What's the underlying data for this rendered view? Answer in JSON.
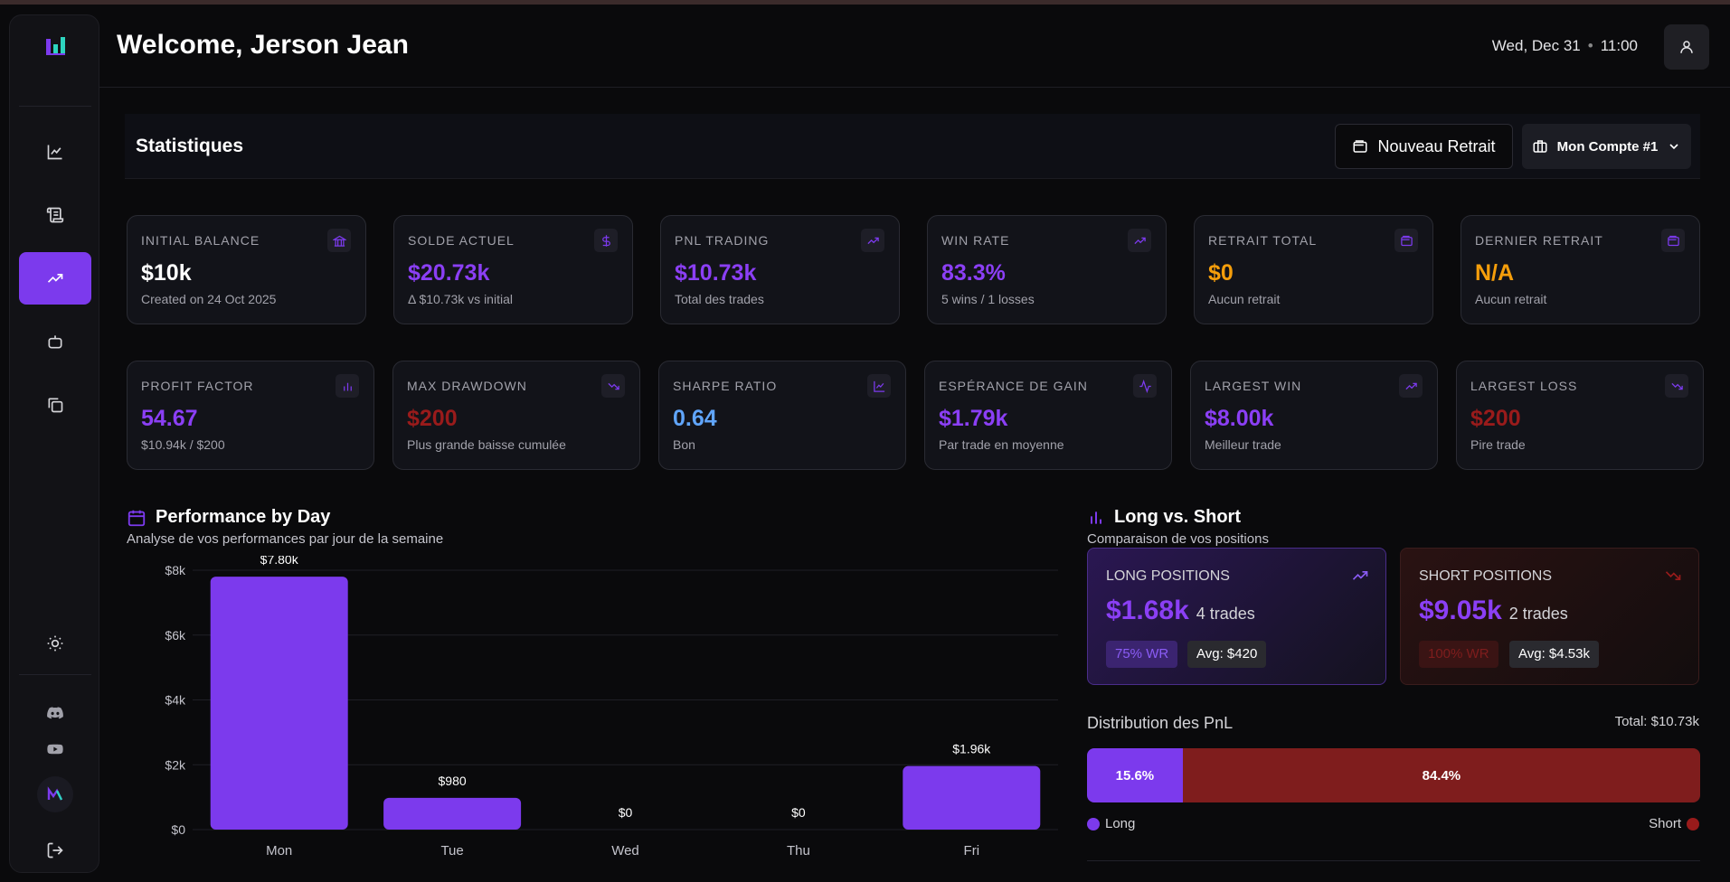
{
  "header": {
    "welcome": "Welcome, Jerson Jean",
    "date": "Wed, Dec 31",
    "time": "11:00"
  },
  "sidebar": {
    "items": [
      {
        "icon": "chart-line-icon"
      },
      {
        "icon": "scroll-icon"
      },
      {
        "icon": "trending-up-icon",
        "active": true
      },
      {
        "icon": "bot-icon"
      },
      {
        "icon": "copy-icon"
      }
    ],
    "bottom": [
      "sun-icon",
      "discord-icon",
      "youtube-icon",
      "logout-icon"
    ]
  },
  "stats": {
    "title": "Statistiques",
    "new_withdrawal": "Nouveau Retrait",
    "account": "Mon Compte #1"
  },
  "cards_row1": [
    {
      "label": "INITIAL BALANCE",
      "value": "$10k",
      "sub": "Created on 24 Oct 2025",
      "color": "#ffffff",
      "icon": "bank-icon"
    },
    {
      "label": "SOLDE ACTUEL",
      "value": "$20.73k",
      "sub": "Δ $10.73k vs initial",
      "color": "#8b3ff5",
      "icon": "dollar-icon"
    },
    {
      "label": "PNL TRADING",
      "value": "$10.73k",
      "sub": "Total des trades",
      "color": "#8b3ff5",
      "icon": "trending-up-icon"
    },
    {
      "label": "WIN RATE",
      "value": "83.3%",
      "sub": "5 wins / 1 losses",
      "color": "#8b3ff5",
      "icon": "trending-up-icon"
    },
    {
      "label": "RETRAIT TOTAL",
      "value": "$0",
      "sub": "Aucun retrait",
      "color": "#f59e0b",
      "icon": "wallet-icon"
    },
    {
      "label": "DERNIER RETRAIT",
      "value": "N/A",
      "sub": "Aucun retrait",
      "color": "#f59e0b",
      "icon": "wallet-icon"
    }
  ],
  "cards_row2": [
    {
      "label": "PROFIT FACTOR",
      "value": "54.67",
      "sub": "$10.94k / $200",
      "color": "#8b3ff5",
      "icon": "bar-chart-icon"
    },
    {
      "label": "MAX DRAWDOWN",
      "value": "$200",
      "sub": "Plus grande baisse cumulée",
      "color": "#991b1b",
      "icon": "trending-down-icon"
    },
    {
      "label": "SHARPE RATIO",
      "value": "0.64",
      "sub": "Bon",
      "color": "#60a5fa",
      "icon": "line-chart-icon"
    },
    {
      "label": "ESPÉRANCE DE GAIN",
      "value": "$1.79k",
      "sub": "Par trade en moyenne",
      "color": "#8b3ff5",
      "icon": "activity-icon"
    },
    {
      "label": "LARGEST WIN",
      "value": "$8.00k",
      "sub": "Meilleur trade",
      "color": "#8b3ff5",
      "icon": "trending-up-icon"
    },
    {
      "label": "LARGEST LOSS",
      "value": "$200",
      "sub": "Pire trade",
      "color": "#991b1b",
      "icon": "trending-down-icon"
    }
  ],
  "performance": {
    "title": "Performance by Day",
    "subtitle": "Analyse de vos performances par jour de la semaine"
  },
  "chart_data": {
    "type": "bar",
    "categories": [
      "Mon",
      "Tue",
      "Wed",
      "Thu",
      "Fri"
    ],
    "values": [
      7800,
      980,
      0,
      0,
      1960
    ],
    "data_labels": [
      "$7.80k",
      "$980",
      "$0",
      "$0",
      "$1.96k"
    ],
    "y_ticks": [
      "$0",
      "$2k",
      "$4k",
      "$6k",
      "$8k"
    ],
    "ylim": [
      0,
      8000
    ],
    "grid": true,
    "bar_color": "#7c3aed"
  },
  "longshort": {
    "title": "Long vs. Short",
    "subtitle": "Comparaison de vos positions",
    "long": {
      "label": "LONG POSITIONS",
      "amount": "$1.68k",
      "trades": "4 trades",
      "wr": "75% WR",
      "avg": "Avg: $420"
    },
    "short": {
      "label": "SHORT POSITIONS",
      "amount": "$9.05k",
      "trades": "2 trades",
      "wr": "100% WR",
      "avg": "Avg: $4.53k"
    }
  },
  "distribution": {
    "title": "Distribution des PnL",
    "total": "Total: $10.73k",
    "long_pct": "15.6%",
    "short_pct": "84.4%",
    "long_share": 0.156,
    "legend_long": "Long",
    "legend_short": "Short"
  }
}
